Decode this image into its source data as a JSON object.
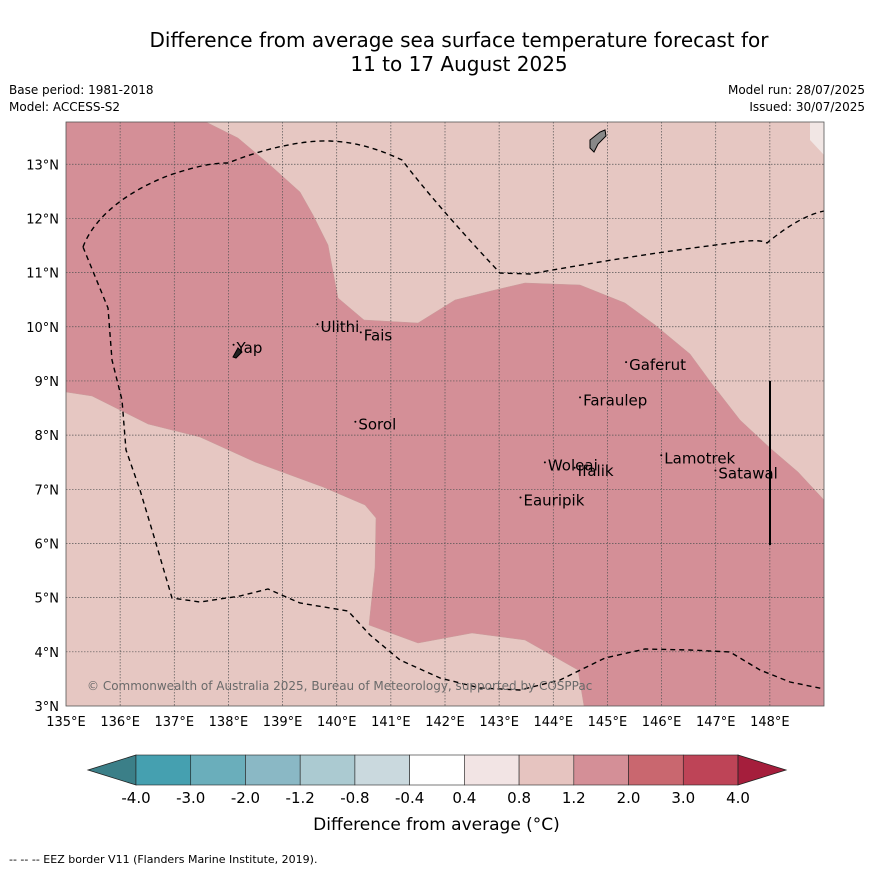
{
  "title": {
    "line1": "Difference from average sea surface temperature forecast for",
    "line2": "11 to 17 August 2025"
  },
  "meta": {
    "base_period": "Base period: 1981-2018",
    "model": "Model: ACCESS-S2",
    "model_run": "Model run: 28/07/2025",
    "issued": "Issued: 30/07/2025"
  },
  "map": {
    "lon_ticks": [
      "135°E",
      "136°E",
      "137°E",
      "138°E",
      "139°E",
      "140°E",
      "141°E",
      "142°E",
      "143°E",
      "144°E",
      "145°E",
      "146°E",
      "147°E",
      "148°E"
    ],
    "lat_ticks": [
      "13°N",
      "12°N",
      "11°N",
      "10°N",
      "9°N",
      "8°N",
      "7°N",
      "6°N",
      "5°N",
      "4°N",
      "3°N"
    ],
    "copyright": "© Commonwealth of Australia 2025, Bureau of Meteorology, supported by COSPPac",
    "colors": {
      "light_pink": "#e6c7c2",
      "mid_pink": "#d48f97",
      "pale": "#f1e6e4"
    },
    "islands": [
      {
        "name": "Yap",
        "lon": 138.15,
        "lat": 9.52
      },
      {
        "name": "Ulithi",
        "lon": 139.7,
        "lat": 9.9
      },
      {
        "name": "Fais",
        "lon": 140.5,
        "lat": 9.75
      },
      {
        "name": "Gaferut",
        "lon": 145.4,
        "lat": 9.2
      },
      {
        "name": "Faraulep",
        "lon": 144.55,
        "lat": 8.55
      },
      {
        "name": "Sorol",
        "lon": 140.4,
        "lat": 8.1
      },
      {
        "name": "Woleai",
        "lon": 143.9,
        "lat": 7.35
      },
      {
        "name": "Ifalik",
        "lon": 144.45,
        "lat": 7.25
      },
      {
        "name": "Lamotrek",
        "lon": 146.05,
        "lat": 7.48
      },
      {
        "name": "Satawal",
        "lon": 147.05,
        "lat": 7.2
      },
      {
        "name": "Eauripik",
        "lon": 143.45,
        "lat": 6.7
      }
    ]
  },
  "colorbar": {
    "labels": [
      "-4.0",
      "-3.0",
      "-2.0",
      "-1.2",
      "-0.8",
      "-0.4",
      "0.4",
      "0.8",
      "1.2",
      "2.0",
      "3.0",
      "4.0"
    ],
    "colors": [
      "#45a0b0",
      "#6aaebb",
      "#8ab8c5",
      "#abcad1",
      "#cad9de",
      "#ffffff",
      "#f2e4e4",
      "#e6c4c0",
      "#d48f97",
      "#c9676f",
      "#be4457"
    ],
    "under_color": "#3b7f88",
    "over_color": "#a51e3c",
    "title": "Difference from average (°C)"
  },
  "footer": "--  --  -- EEZ border V11 (Flanders Marine Institute, 2019)."
}
